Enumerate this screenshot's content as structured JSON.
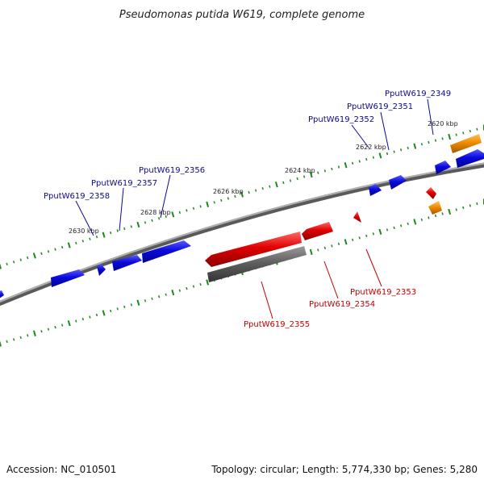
{
  "title": "Pseudomonas putida W619, complete genome",
  "footer": {
    "accession": "Accession: NC_010501",
    "topology": "Topology: circular; Length: 5,774,330 bp; Genes: 5,280"
  },
  "colors": {
    "forward_gene": "#0a0adc",
    "reverse_gene": "#e00000",
    "gray_feature": "#606060",
    "orange_feature": "#f08c00",
    "ticks": "#1a8a1a",
    "backbone": "#808080",
    "forward_label": "#0a0a8c",
    "reverse_label": "#c00000"
  },
  "kbp_labels": [
    "2620 kbp",
    "2622 kbp",
    "2624 kbp",
    "2626 kbp",
    "2628 kbp",
    "2630 kbp"
  ],
  "gene_labels": {
    "forward": [
      "PputW619_2349",
      "PputW619_2351",
      "PputW619_2352",
      "PputW619_2356",
      "PputW619_2357",
      "PputW619_2358"
    ],
    "reverse": [
      "PputW619_2353",
      "PputW619_2354",
      "PputW619_2355"
    ]
  }
}
